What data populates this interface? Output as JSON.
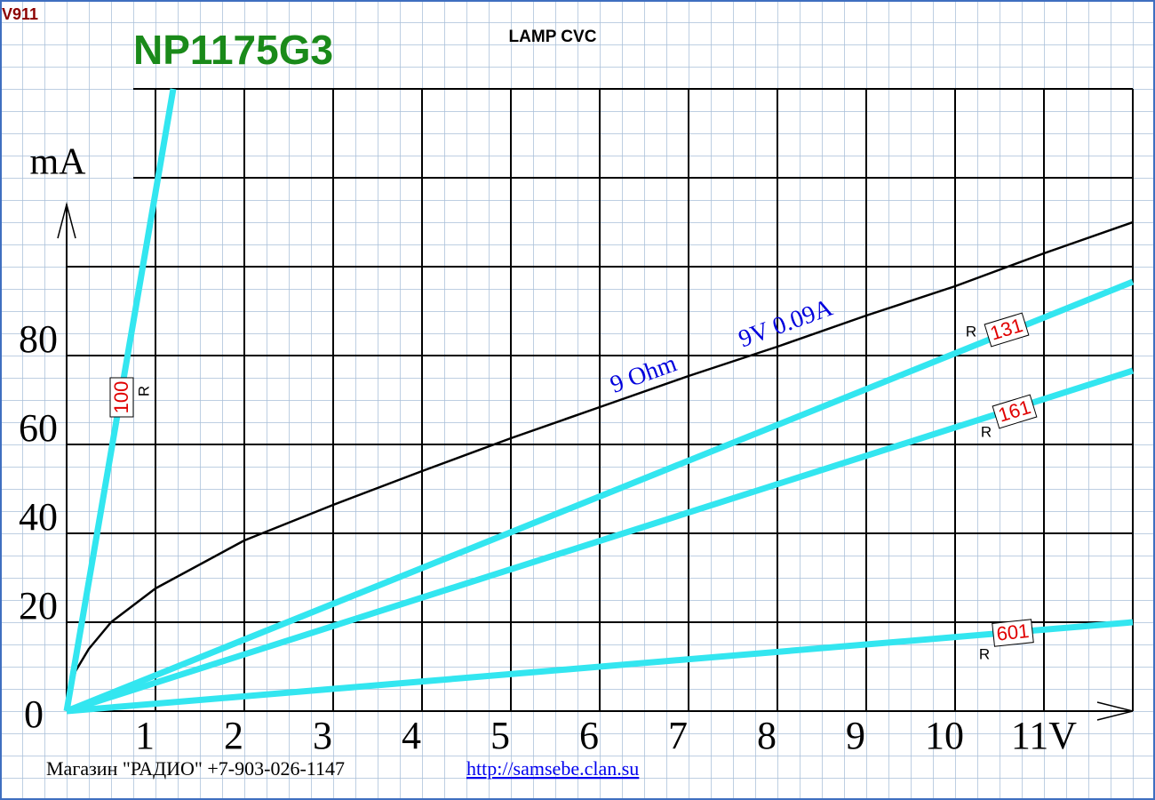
{
  "page": {
    "code": "V911",
    "footer": "Магазин \"РАДИО\" +7-903-026-1147",
    "link": "http://samsebe.clan.su"
  },
  "chart_data": {
    "type": "line",
    "title": "NP1175G3",
    "subtitle": "LAMP CVC",
    "y_label": "mA",
    "xlim": [
      0,
      12
    ],
    "ylim": [
      0,
      140
    ],
    "xticks": [
      1,
      2,
      3,
      4,
      5,
      6,
      7,
      8,
      9,
      10,
      {
        "value": 11,
        "label": "11V"
      },
      {
        "value": 12,
        "label": null
      }
    ],
    "yticks": [
      0,
      20,
      40,
      60,
      80,
      {
        "value": 100,
        "label": null
      },
      {
        "value": 120,
        "label": null
      },
      {
        "value": 140,
        "label": null
      }
    ],
    "grid": true,
    "series": [
      {
        "color": "#000000",
        "x": [
          0,
          0.1,
          0.25,
          0.5,
          1,
          2,
          3,
          4,
          5,
          6,
          7,
          8,
          9,
          10,
          11,
          12
        ],
        "values": [
          0,
          9,
          14,
          20,
          27.6,
          38.4,
          46.4,
          54,
          61.4,
          68.4,
          75.4,
          82,
          89,
          95.6,
          103,
          110
        ]
      },
      {
        "name": "100",
        "color": "#33e6f0",
        "x": [
          0,
          1.2
        ],
        "values": [
          0,
          140
        ]
      },
      {
        "name": "131",
        "color": "#33e6f0",
        "x": [
          0,
          12
        ],
        "values": [
          0,
          96.6
        ]
      },
      {
        "name": "161",
        "color": "#33e6f0",
        "x": [
          0,
          12
        ],
        "values": [
          0,
          76.6
        ]
      },
      {
        "name": "601",
        "color": "#33e6f0",
        "x": [
          0,
          12
        ],
        "values": [
          0,
          20
        ]
      }
    ],
    "series_tag": "R",
    "annotations": [
      "9 Ohm",
      "9V 0.09A"
    ]
  }
}
